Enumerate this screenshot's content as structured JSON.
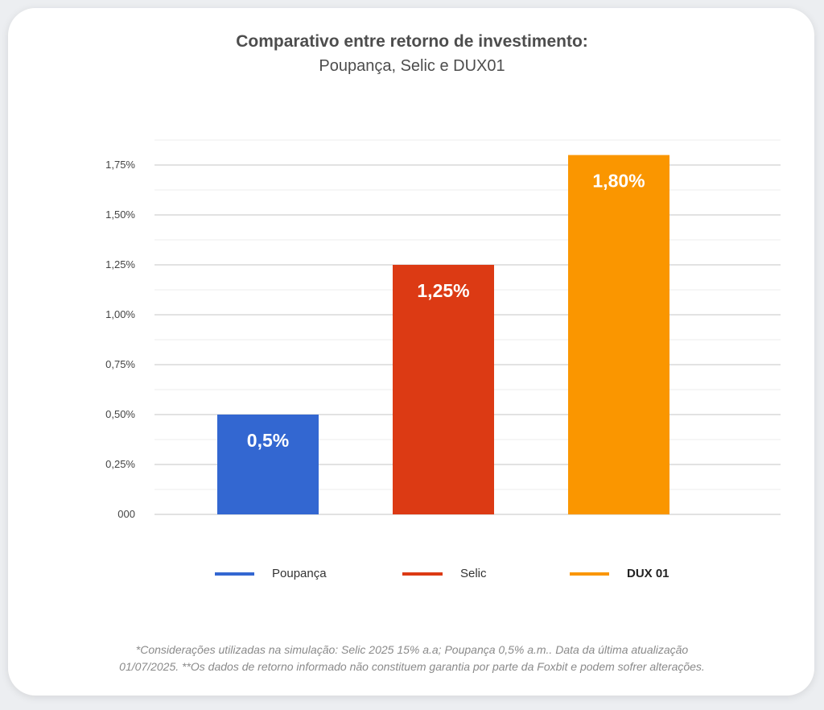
{
  "chart_data": {
    "type": "bar",
    "title": "Comparativo entre retorno de investimento:",
    "subtitle": "Poupança, Selic e DUX01",
    "categories": [
      "Poupança",
      "Selic",
      "DUX 01"
    ],
    "values": [
      0.5,
      1.25,
      1.8
    ],
    "value_labels": [
      "0,5%",
      "1,25%",
      "1,80%"
    ],
    "colors": [
      "#3367d1",
      "#dc3a14",
      "#fa9600"
    ],
    "y_ticks": [
      0,
      0.25,
      0.5,
      0.75,
      1.0,
      1.25,
      1.5,
      1.75
    ],
    "y_tick_labels": [
      "000",
      "0,25%",
      "0,50%",
      "0,75%",
      "1,00%",
      "1,25%",
      "1,50%",
      "1,75%"
    ],
    "ylim": [
      0,
      1.875
    ],
    "grid": true,
    "legend": {
      "position": "bottom",
      "entries": [
        {
          "label": "Poupança",
          "color": "#3367d1",
          "bold": false
        },
        {
          "label": "Selic",
          "color": "#dc3a14",
          "bold": false
        },
        {
          "label": "DUX 01",
          "color": "#fa9600",
          "bold": true
        }
      ]
    }
  },
  "footnote": {
    "line1": "*Considerações utilizadas na simulação: Selic 2025 15% a.a; Poupança 0,5% a.m.. Data da última atualização",
    "line2": "01/07/2025. **Os dados de retorno informado não constituem garantia por parte da Foxbit e podem sofrer alterações."
  }
}
